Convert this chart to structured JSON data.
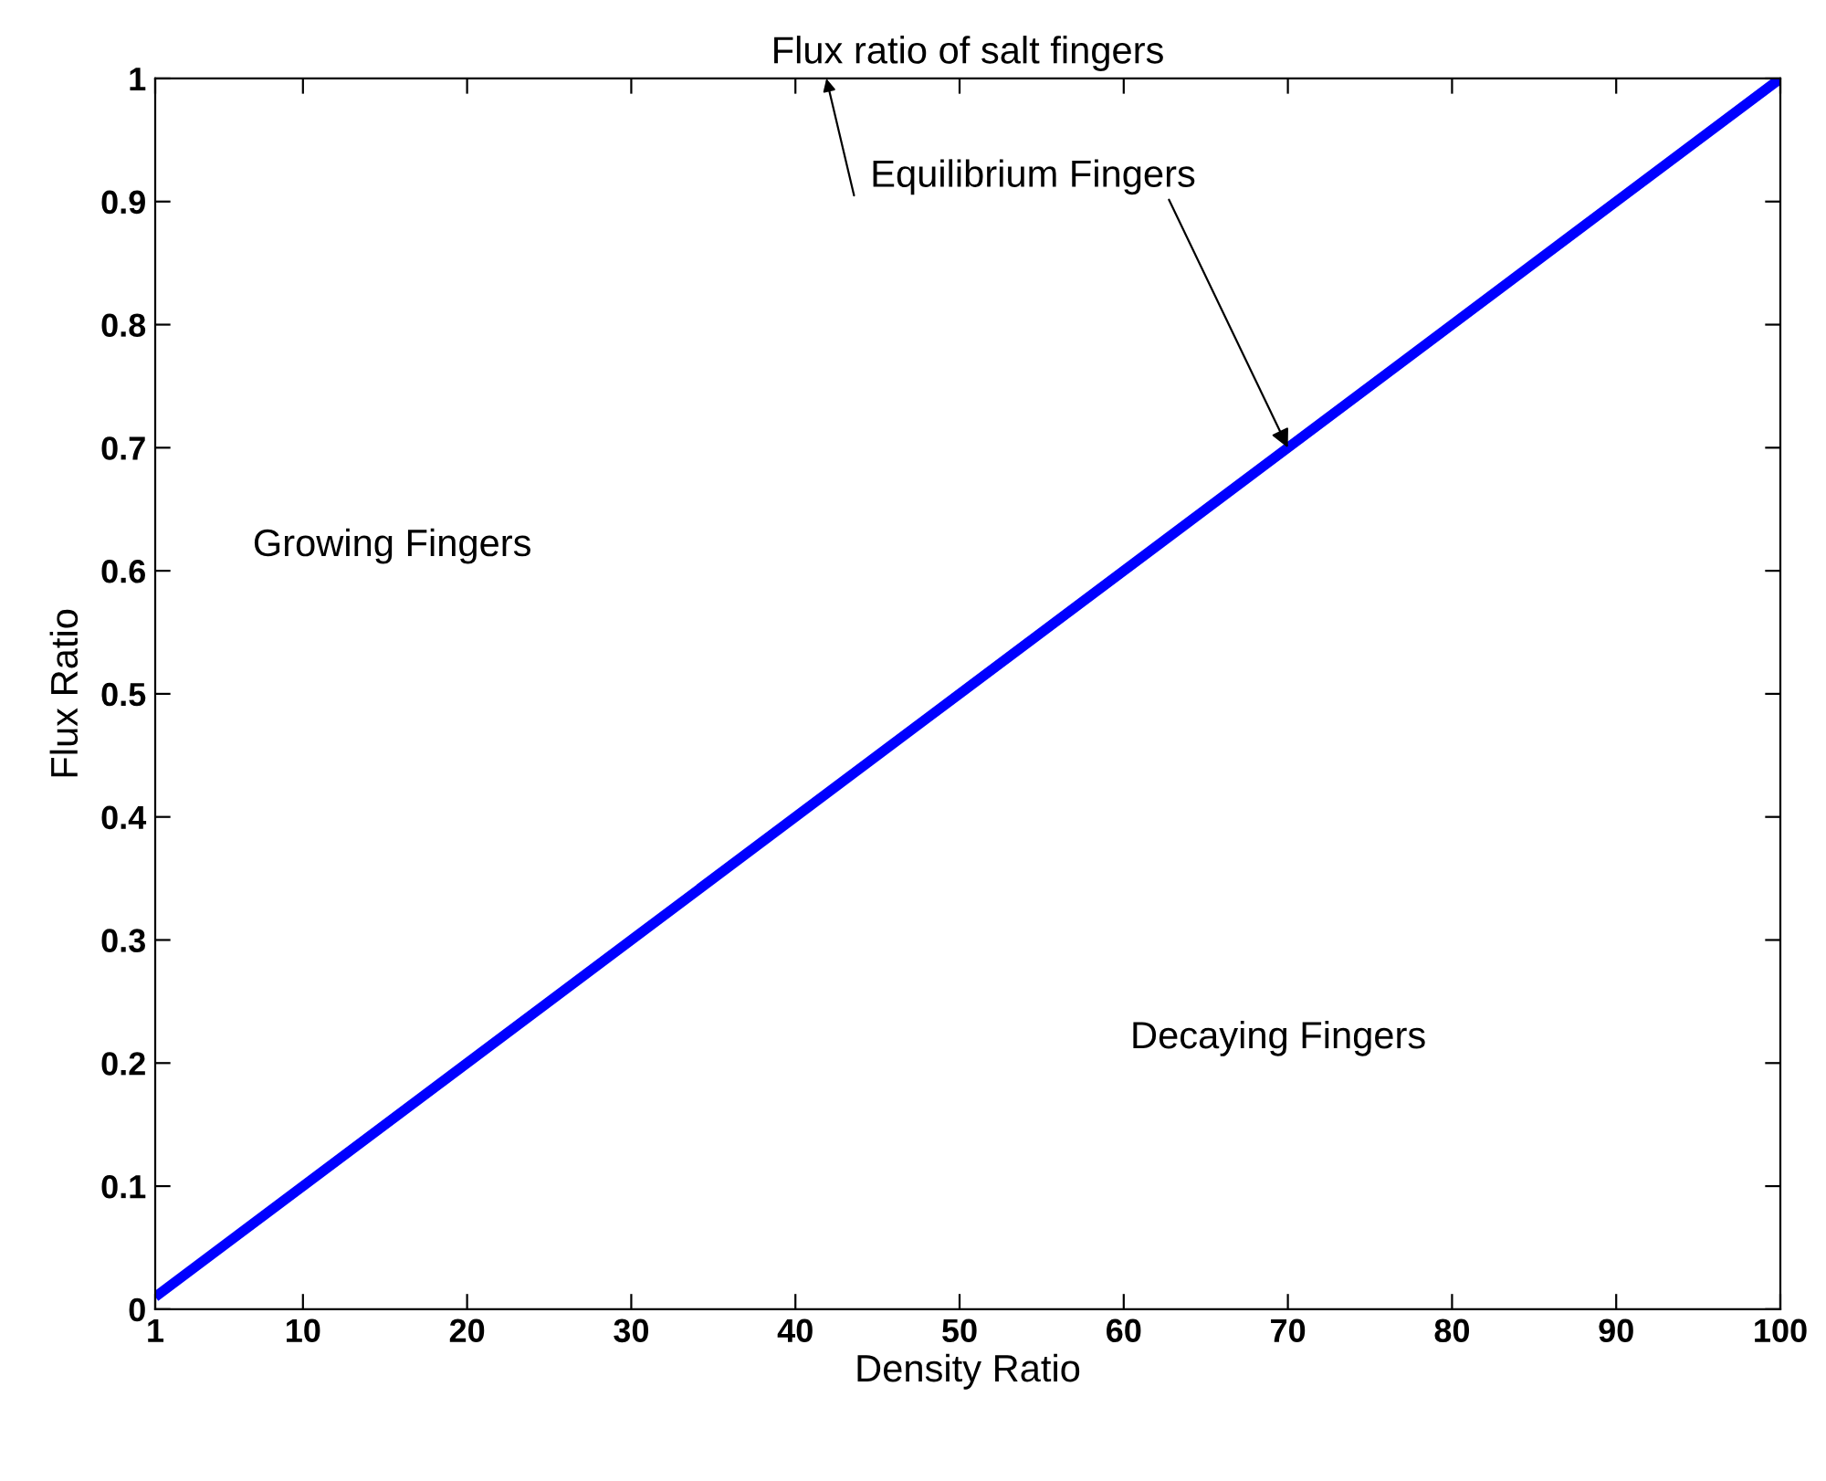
{
  "chart_data": {
    "type": "line",
    "title": "Flux ratio of salt fingers",
    "xlabel": "Density Ratio",
    "ylabel": "Flux Ratio",
    "x": [
      1,
      100
    ],
    "series": [
      {
        "color": "#0000ff",
        "values": [
          0.01,
          1
        ]
      }
    ],
    "xlim": [
      1,
      100
    ],
    "xticks": [
      1,
      10,
      20,
      30,
      40,
      50,
      60,
      70,
      80,
      90,
      100
    ],
    "ylim": [
      0,
      1
    ],
    "yticks": [
      0,
      0.1,
      0.2,
      0.3,
      0.4,
      0.5,
      0.6,
      0.7,
      0.8,
      0.9,
      1
    ],
    "annotations": [
      {
        "text": "Equilibrium Fingers",
        "x": 70,
        "y": 0.7
      },
      "Growing Fingers",
      "Decaying Fingers"
    ],
    "grid": false,
    "legend": false
  }
}
